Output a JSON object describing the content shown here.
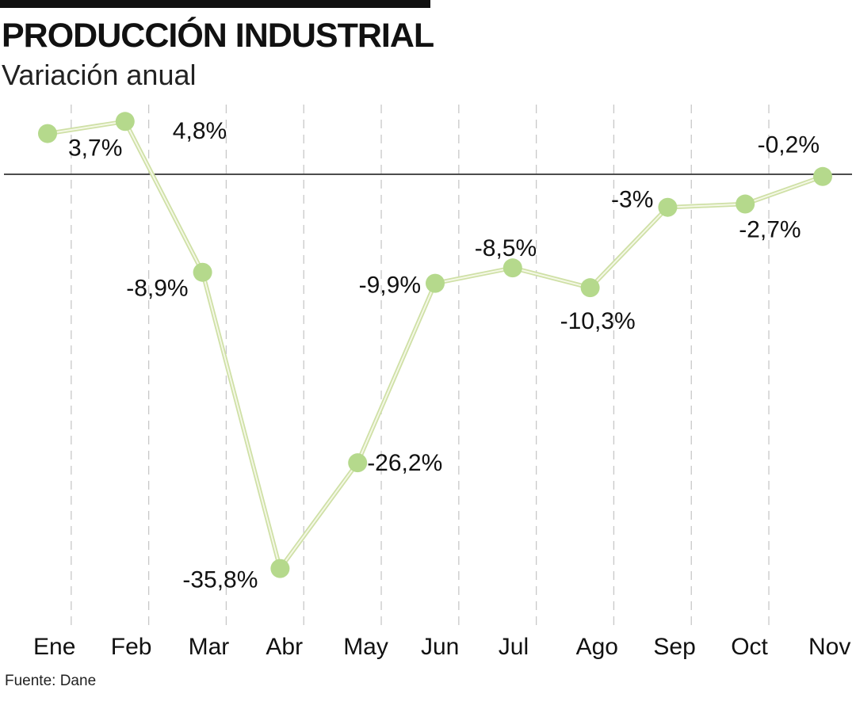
{
  "header": {
    "title": "PRODUCCIÓN INDUSTRIAL",
    "subtitle": "Variación anual"
  },
  "footer": {
    "source": "Fuente: Dane"
  },
  "colors": {
    "line": "#e3edc6",
    "marker": "#b5d98c",
    "zero_line": "#111111",
    "grid": "#c8c8c8",
    "text": "#111111"
  },
  "chart_data": {
    "type": "line",
    "title": "PRODUCCIÓN INDUSTRIAL",
    "subtitle": "Variación anual",
    "categories": [
      "Ene",
      "Feb",
      "Mar",
      "Abr",
      "May",
      "Jun",
      "Jul",
      "Ago",
      "Sep",
      "Oct",
      "Nov"
    ],
    "values": [
      3.7,
      4.8,
      -8.9,
      -35.8,
      -26.2,
      -9.9,
      -8.5,
      -10.3,
      -3,
      -2.7,
      -0.2
    ],
    "data_labels": [
      "3,7%",
      "4,8%",
      "-8,9%",
      "-35,8%",
      "-26,2%",
      "-9,9%",
      "-8,5%",
      "-10,3%",
      "-3%",
      "-2,7%",
      "-0,2%"
    ],
    "ylim": [
      -39,
      6
    ],
    "zero_line": true,
    "grid": "vertical-dashed",
    "legend": "none",
    "source": "Fuente: Dane"
  }
}
